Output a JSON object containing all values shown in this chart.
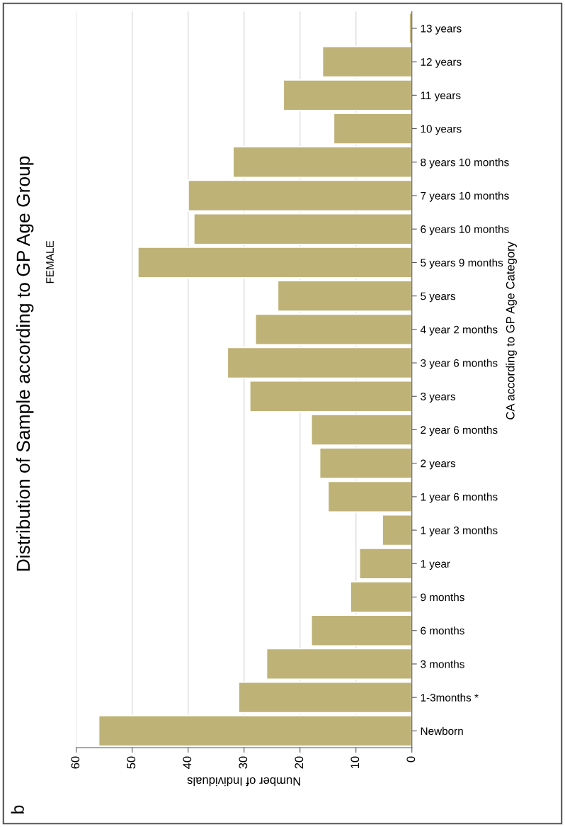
{
  "chart_data": {
    "type": "bar",
    "orientation": "horizontal",
    "title": "Distribution of Sample according to GP Age Group",
    "subtitle": "FEMALE",
    "xlabel": "Number of Individuals",
    "ylabel": "CA according to GP Age Category",
    "categories": [
      "13 years",
      "12 years",
      "11 years",
      "10 years",
      "8 years 10 months",
      "7 years 10 months",
      "6 years 10 months",
      "5 years 9 months",
      "5 years",
      "4 year 2 months",
      "3 year 6 months",
      "3 years",
      "2 year 6 months",
      "2 years",
      "1 year 6 months",
      "1 year 3 months",
      "1 year",
      "9 months",
      "6 months",
      "3 months",
      "1-3months *",
      "Newborn"
    ],
    "values": [
      0.5,
      16,
      23,
      14,
      32,
      40,
      39,
      49,
      24,
      28,
      33,
      29,
      18,
      16.5,
      15,
      5.3,
      9.4,
      11,
      18,
      26,
      31,
      56
    ],
    "color": "#bfb277",
    "xlim": [
      60,
      0
    ],
    "xticks": [
      0,
      10,
      20,
      30,
      40,
      50,
      60
    ],
    "grid": "x",
    "annotations": [
      "b"
    ]
  }
}
